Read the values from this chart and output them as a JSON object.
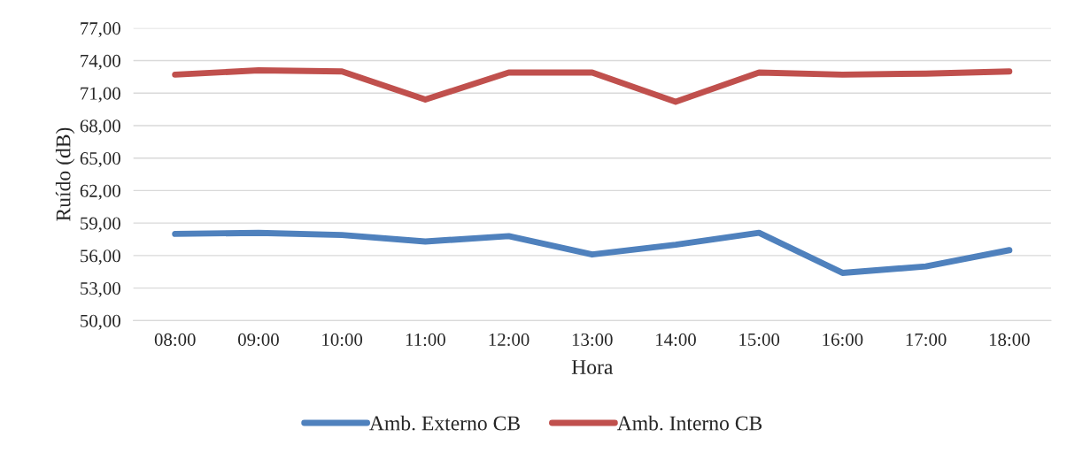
{
  "chart_data": {
    "type": "line",
    "xlabel": "Hora",
    "ylabel": "Ruído (dB)",
    "categories": [
      "08:00",
      "09:00",
      "10:00",
      "11:00",
      "12:00",
      "13:00",
      "14:00",
      "15:00",
      "16:00",
      "17:00",
      "18:00"
    ],
    "series": [
      {
        "name": "Amb. Externo CB",
        "color": "#4f81bd",
        "values": [
          58.0,
          58.1,
          57.9,
          57.3,
          57.8,
          56.1,
          57.0,
          58.1,
          54.4,
          55.0,
          56.5
        ]
      },
      {
        "name": "Amb. Interno CB",
        "color": "#c0504d",
        "values": [
          72.7,
          73.1,
          73.0,
          70.4,
          72.9,
          72.9,
          70.2,
          72.9,
          72.7,
          72.8,
          73.0
        ]
      }
    ],
    "ylim": [
      50,
      77
    ],
    "yticks": [
      {
        "value": 50,
        "label": "50,00"
      },
      {
        "value": 53,
        "label": "53,00"
      },
      {
        "value": 56,
        "label": "56,00"
      },
      {
        "value": 59,
        "label": "59,00"
      },
      {
        "value": 62,
        "label": "62,00"
      },
      {
        "value": 65,
        "label": "65,00"
      },
      {
        "value": 68,
        "label": "68,00"
      },
      {
        "value": 71,
        "label": "71,00"
      },
      {
        "value": 74,
        "label": "74,00"
      },
      {
        "value": 77,
        "label": "77,00"
      }
    ],
    "grid": "y",
    "legend": "bottom",
    "marker": "none",
    "line_style": "solid"
  }
}
